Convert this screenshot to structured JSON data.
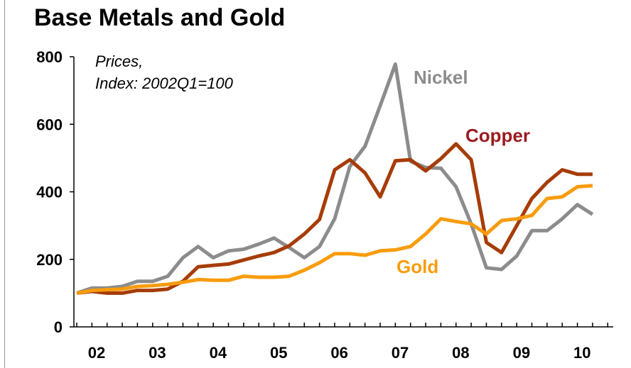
{
  "title": "Base Metals and Gold",
  "chart_data": {
    "type": "line",
    "title": "Base Metals and Gold",
    "note_line1": "Prices,",
    "note_line2": "Index: 2002Q1=100",
    "ylim": [
      0,
      800
    ],
    "y_ticks": [
      "0",
      "200",
      "400",
      "600",
      "800"
    ],
    "x_ticks": [
      "02",
      "03",
      "04",
      "05",
      "06",
      "07",
      "08",
      "09",
      "10"
    ],
    "x": [
      "2002Q1",
      "2002Q2",
      "2002Q3",
      "2002Q4",
      "2003Q1",
      "2003Q2",
      "2003Q3",
      "2003Q4",
      "2004Q1",
      "2004Q2",
      "2004Q3",
      "2004Q4",
      "2005Q1",
      "2005Q2",
      "2005Q3",
      "2005Q4",
      "2006Q1",
      "2006Q2",
      "2006Q3",
      "2006Q4",
      "2007Q1",
      "2007Q2",
      "2007Q3",
      "2007Q4",
      "2008Q1",
      "2008Q2",
      "2008Q3",
      "2008Q4",
      "2009Q1",
      "2009Q2",
      "2009Q3",
      "2009Q4",
      "2010Q1",
      "2010Q2",
      "2010Q3"
    ],
    "grid": false,
    "series": [
      {
        "name": "Nickel",
        "color": "#8c8c8c",
        "values": [
          100,
          115,
          115,
          120,
          135,
          135,
          150,
          205,
          238,
          205,
          225,
          230,
          245,
          263,
          235,
          205,
          238,
          320,
          475,
          535,
          655,
          778,
          490,
          472,
          470,
          415,
          305,
          175,
          170,
          210,
          285,
          285,
          320,
          362,
          333
        ]
      },
      {
        "name": "Copper",
        "color": "#a63c06",
        "values": [
          100,
          105,
          100,
          100,
          108,
          108,
          112,
          135,
          178,
          182,
          186,
          198,
          210,
          220,
          240,
          275,
          318,
          465,
          495,
          456,
          385,
          492,
          495,
          462,
          498,
          542,
          495,
          250,
          220,
          300,
          380,
          428,
          465,
          452,
          452
        ]
      },
      {
        "name": "Gold",
        "color": "#f89c0e",
        "values": [
          100,
          108,
          110,
          112,
          120,
          122,
          126,
          132,
          140,
          138,
          138,
          150,
          147,
          147,
          150,
          168,
          190,
          217,
          217,
          212,
          225,
          228,
          238,
          275,
          320,
          312,
          305,
          275,
          315,
          320,
          330,
          380,
          385,
          415,
          418
        ]
      }
    ]
  }
}
